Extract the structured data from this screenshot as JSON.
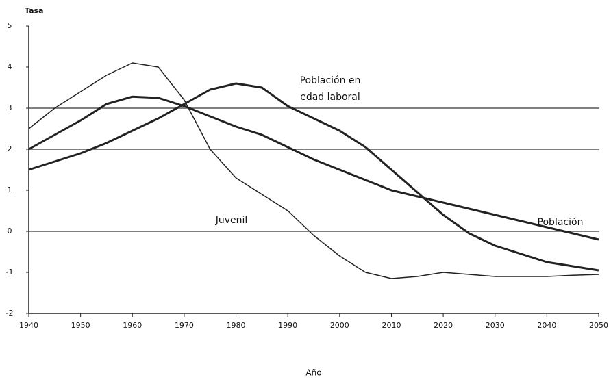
{
  "chart_data": {
    "type": "line",
    "y_axis_label": "Tasa",
    "x_axis_label": "Año",
    "annotations": [
      "Juvenil",
      "Población en",
      "edad laboral",
      "Población"
    ],
    "x": [
      1940,
      1945,
      1950,
      1955,
      1960,
      1965,
      1970,
      1975,
      1980,
      1985,
      1990,
      1995,
      2000,
      2005,
      2010,
      2015,
      2020,
      2025,
      2030,
      2035,
      2040,
      2045,
      2050
    ],
    "series": [
      {
        "name": "Juvenil",
        "color": "#222222",
        "line_width": 1.5,
        "values": [
          2.5,
          3.0,
          3.4,
          3.8,
          4.1,
          4.0,
          3.2,
          2.0,
          1.3,
          0.9,
          0.5,
          -0.1,
          -0.6,
          -1.0,
          -1.15,
          -1.1,
          -1.0,
          -1.05,
          -1.1,
          -1.1,
          -1.1,
          -1.07,
          -1.05
        ]
      },
      {
        "name": "Población en edad laboral",
        "color": "#222222",
        "line_width": 3,
        "values": [
          1.5,
          1.7,
          1.9,
          2.15,
          2.45,
          2.75,
          3.1,
          3.45,
          3.6,
          3.5,
          3.05,
          2.75,
          2.45,
          2.05,
          1.5,
          0.95,
          0.4,
          -0.05,
          -0.35,
          -0.55,
          -0.75,
          -0.85,
          -0.95
        ]
      },
      {
        "name": "Población",
        "color": "#222222",
        "line_width": 3,
        "values": [
          2.0,
          2.35,
          2.7,
          3.1,
          3.28,
          3.25,
          3.05,
          2.8,
          2.55,
          2.35,
          2.05,
          1.75,
          1.5,
          1.25,
          1.0,
          0.85,
          0.7,
          0.55,
          0.4,
          0.25,
          0.1,
          -0.05,
          -0.2
        ]
      }
    ],
    "xlim": [
      1940,
      2050
    ],
    "xticks": [
      1940,
      1950,
      1960,
      1970,
      1980,
      1990,
      2000,
      2010,
      2020,
      2030,
      2040,
      2050
    ],
    "ylim": [
      -2,
      5
    ],
    "yticks": [
      -2,
      -1,
      0,
      1,
      2,
      3,
      4,
      5
    ],
    "reference_lines": [
      0,
      2,
      3
    ]
  }
}
